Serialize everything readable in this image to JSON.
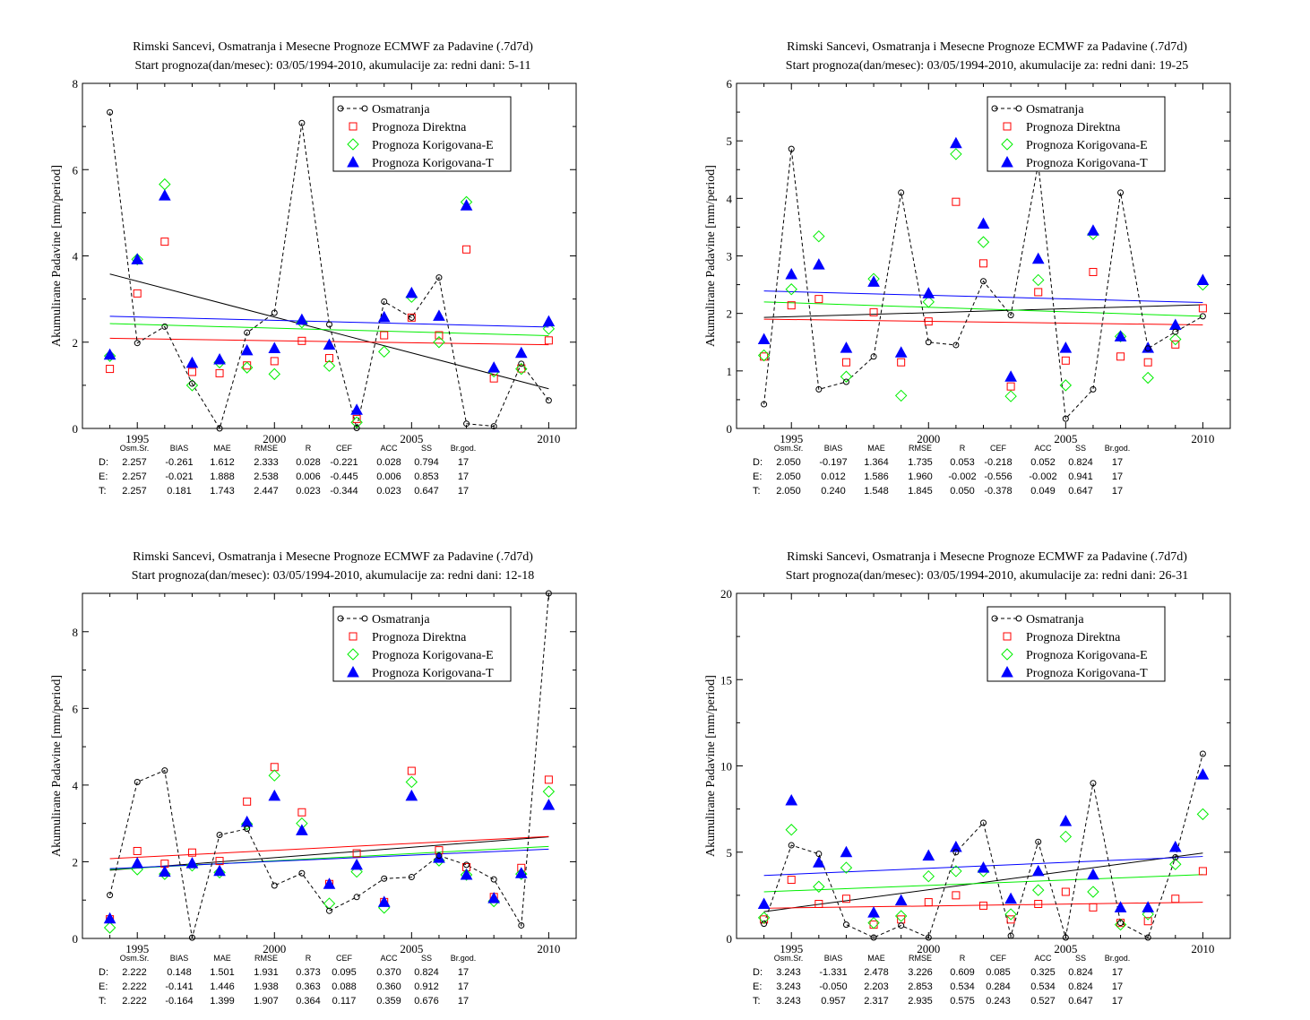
{
  "chart_data": [
    {
      "type": "scatter",
      "title": "Rimski Sancevi, Osmatranja i Mesecne Prognoze ECMWF za Padavine (.7d7d)",
      "subtitle": "Start prognoza(dan/mesec): 03/05/1994-2010, akumulacije za: redni dani: 5-11",
      "ylabel": "Akumulirane Padavine [mm/period]",
      "xlim": [
        1993,
        2011
      ],
      "ylim": [
        0,
        8
      ],
      "xticks": [
        1995,
        2000,
        2005,
        2010
      ],
      "yticks": [
        0,
        2,
        4,
        6,
        8
      ],
      "x": [
        1994,
        1995,
        1996,
        1997,
        1998,
        1999,
        2000,
        2001,
        2002,
        2003,
        2004,
        2005,
        2006,
        2007,
        2008,
        2009,
        2010
      ],
      "series": [
        {
          "name": "Osmatranja",
          "color": "#000000",
          "marker": "circle",
          "line": "dashed",
          "values": [
            7.33,
            1.98,
            2.36,
            1.04,
            0.0,
            2.22,
            2.68,
            7.08,
            2.41,
            0.01,
            2.94,
            2.57,
            3.5,
            0.11,
            0.05,
            1.5,
            0.65
          ],
          "trend": [
            3.58,
            0.92
          ]
        },
        {
          "name": "Prognoza Direktna",
          "color": "#ff0000",
          "marker": "square",
          "values": [
            1.38,
            3.13,
            4.33,
            1.31,
            1.28,
            1.46,
            1.56,
            2.03,
            1.63,
            0.22,
            2.16,
            2.57,
            2.16,
            4.15,
            1.16,
            1.39,
            2.04
          ],
          "trend": [
            2.09,
            1.94
          ]
        },
        {
          "name": "Prognoza Korigovana-E",
          "color": "#00ee00",
          "marker": "diamond",
          "values": [
            1.68,
            3.92,
            5.66,
            1.0,
            1.53,
            1.41,
            1.26,
            2.46,
            1.45,
            0.14,
            1.78,
            3.05,
            2.0,
            5.25,
            1.32,
            1.38,
            2.31
          ],
          "trend": [
            2.43,
            2.15
          ]
        },
        {
          "name": "Prognoza Korigovana-T",
          "color": "#0000ff",
          "marker": "triangle",
          "values": [
            1.71,
            3.92,
            5.4,
            1.52,
            1.6,
            1.81,
            1.86,
            2.52,
            1.94,
            0.43,
            2.58,
            3.14,
            2.61,
            5.17,
            1.41,
            1.75,
            2.48
          ],
          "trend": [
            2.6,
            2.35
          ]
        }
      ],
      "stats": {
        "headers": [
          "Osm.Sr.",
          "BIAS",
          "MAE",
          "RMSE",
          "R",
          "CEF",
          "ACC",
          "SS",
          "Br.god."
        ],
        "rows": [
          {
            "label": "D:",
            "color": "#ff0000",
            "values": [
              "2.257",
              "-0.261",
              "1.612",
              "2.333",
              "0.028",
              "-0.221",
              "0.028",
              "0.794",
              "17"
            ]
          },
          {
            "label": "E:",
            "color": "#00cc00",
            "values": [
              "2.257",
              "-0.021",
              "1.888",
              "2.538",
              "0.006",
              "-0.445",
              "0.006",
              "0.853",
              "17"
            ]
          },
          {
            "label": "T:",
            "color": "#0000ff",
            "values": [
              "2.257",
              "0.181",
              "1.743",
              "2.447",
              "0.023",
              "-0.344",
              "0.023",
              "0.647",
              "17"
            ]
          }
        ]
      }
    },
    {
      "type": "scatter",
      "title": "Rimski Sancevi, Osmatranja i Mesecne Prognoze ECMWF za Padavine (.7d7d)",
      "subtitle": "Start prognoza(dan/mesec): 03/05/1994-2010, akumulacije za: redni dani: 19-25",
      "ylabel": "Akumulirane Padavine [mm/period]",
      "xlim": [
        1993,
        2011
      ],
      "ylim": [
        0,
        6
      ],
      "xticks": [
        1995,
        2000,
        2005,
        2010
      ],
      "yticks": [
        0,
        1,
        2,
        3,
        4,
        5,
        6
      ],
      "x": [
        1994,
        1995,
        1996,
        1997,
        1998,
        1999,
        2000,
        2001,
        2002,
        2003,
        2004,
        2005,
        2006,
        2007,
        2008,
        2009,
        2010
      ],
      "series": [
        {
          "name": "Osmatranja",
          "color": "#000000",
          "marker": "circle",
          "line": "dashed",
          "values": [
            0.42,
            4.86,
            0.68,
            0.81,
            1.25,
            4.1,
            1.5,
            1.45,
            2.56,
            1.97,
            4.6,
            0.17,
            0.68,
            4.1,
            1.39,
            1.68,
            1.95
          ],
          "trend": [
            1.93,
            2.15
          ]
        },
        {
          "name": "Prognoza Direktna",
          "color": "#ff0000",
          "marker": "square",
          "values": [
            1.25,
            2.14,
            2.25,
            1.15,
            2.02,
            1.15,
            1.86,
            3.94,
            2.87,
            0.73,
            2.37,
            1.18,
            2.72,
            1.25,
            1.15,
            1.46,
            2.09
          ],
          "trend": [
            1.9,
            1.8
          ]
        },
        {
          "name": "Prognoza Korigovana-E",
          "color": "#00ee00",
          "marker": "diamond",
          "values": [
            1.27,
            2.42,
            3.34,
            0.9,
            2.6,
            0.57,
            2.2,
            4.77,
            3.24,
            0.56,
            2.58,
            0.75,
            3.38,
            1.6,
            0.88,
            1.55,
            2.5
          ],
          "trend": [
            2.2,
            1.95
          ]
        },
        {
          "name": "Prognoza Korigovana-T",
          "color": "#0000ff",
          "marker": "triangle",
          "values": [
            1.55,
            2.68,
            2.85,
            1.4,
            2.55,
            1.32,
            2.35,
            4.96,
            3.56,
            0.9,
            2.95,
            1.4,
            3.44,
            1.6,
            1.4,
            1.8,
            2.58
          ],
          "trend": [
            2.39,
            2.19
          ]
        }
      ],
      "stats": {
        "headers": [
          "Osm.Sr.",
          "BIAS",
          "MAE",
          "RMSE",
          "R",
          "CEF",
          "ACC",
          "SS",
          "Br.god."
        ],
        "rows": [
          {
            "label": "D:",
            "color": "#ff0000",
            "values": [
              "2.050",
              "-0.197",
              "1.364",
              "1.735",
              "0.053",
              "-0.218",
              "0.052",
              "0.824",
              "17"
            ]
          },
          {
            "label": "E:",
            "color": "#00cc00",
            "values": [
              "2.050",
              "0.012",
              "1.586",
              "1.960",
              "-0.002",
              "-0.556",
              "-0.002",
              "0.941",
              "17"
            ]
          },
          {
            "label": "T:",
            "color": "#0000ff",
            "values": [
              "2.050",
              "0.240",
              "1.548",
              "1.845",
              "0.050",
              "-0.378",
              "0.049",
              "0.647",
              "17"
            ]
          }
        ]
      }
    },
    {
      "type": "scatter",
      "title": "Rimski Sancevi, Osmatranja i Mesecne Prognoze ECMWF za Padavine (.7d7d)",
      "subtitle": "Start prognoza(dan/mesec): 03/05/1994-2010, akumulacije za: redni dani: 12-18",
      "ylabel": "Akumulirane Padavine [mm/period]",
      "xlim": [
        1993,
        2011
      ],
      "ylim": [
        0,
        9
      ],
      "xticks": [
        1995,
        2000,
        2005,
        2010
      ],
      "yticks": [
        0,
        2,
        4,
        6,
        8
      ],
      "x": [
        1994,
        1995,
        1996,
        1997,
        1998,
        1999,
        2000,
        2001,
        2002,
        2003,
        2004,
        2005,
        2006,
        2007,
        2008,
        2009,
        2010
      ],
      "series": [
        {
          "name": "Osmatranja",
          "color": "#000000",
          "marker": "circle",
          "line": "dashed",
          "values": [
            1.13,
            4.08,
            4.38,
            0.02,
            2.7,
            2.86,
            1.38,
            1.7,
            0.72,
            1.08,
            1.56,
            1.6,
            2.16,
            1.92,
            1.54,
            0.34,
            9.0
          ],
          "trend": [
            1.78,
            2.65
          ]
        },
        {
          "name": "Prognoza Direktna",
          "color": "#ff0000",
          "marker": "square",
          "values": [
            0.5,
            2.28,
            1.95,
            2.24,
            2.02,
            3.57,
            4.47,
            3.29,
            1.42,
            2.22,
            0.95,
            4.37,
            2.3,
            1.86,
            1.08,
            1.84,
            4.14
          ],
          "trend": [
            2.08,
            2.66
          ]
        },
        {
          "name": "Prognoza Korigovana-E",
          "color": "#00ee00",
          "marker": "diamond",
          "values": [
            0.28,
            1.8,
            1.68,
            1.9,
            1.72,
            2.98,
            4.25,
            3.0,
            0.91,
            1.74,
            0.8,
            4.08,
            2.03,
            1.66,
            0.97,
            1.68,
            3.83
          ],
          "trend": [
            1.8,
            2.4
          ]
        },
        {
          "name": "Prognoza Korigovana-T",
          "color": "#0000ff",
          "marker": "triangle",
          "values": [
            0.52,
            1.96,
            1.74,
            1.96,
            1.76,
            3.04,
            3.72,
            2.82,
            1.42,
            1.92,
            0.95,
            3.72,
            2.1,
            1.66,
            1.05,
            1.7,
            3.48
          ],
          "trend": [
            1.82,
            2.33
          ]
        }
      ],
      "stats": {
        "headers": [
          "Osm.Sr.",
          "BIAS",
          "MAE",
          "RMSE",
          "R",
          "CEF",
          "ACC",
          "SS",
          "Br.god."
        ],
        "rows": [
          {
            "label": "D:",
            "color": "#ff0000",
            "values": [
              "2.222",
              "0.148",
              "1.501",
              "1.931",
              "0.373",
              "0.095",
              "0.370",
              "0.824",
              "17"
            ]
          },
          {
            "label": "E:",
            "color": "#00cc00",
            "values": [
              "2.222",
              "-0.141",
              "1.446",
              "1.938",
              "0.363",
              "0.088",
              "0.360",
              "0.912",
              "17"
            ]
          },
          {
            "label": "T:",
            "color": "#0000ff",
            "values": [
              "2.222",
              "-0.164",
              "1.399",
              "1.907",
              "0.364",
              "0.117",
              "0.359",
              "0.676",
              "17"
            ]
          }
        ]
      }
    },
    {
      "type": "scatter",
      "title": "Rimski Sancevi, Osmatranja i Mesecne Prognoze ECMWF za Padavine (.7d7d)",
      "subtitle": "Start prognoza(dan/mesec): 03/05/1994-2010, akumulacije za: redni dani: 26-31",
      "ylabel": "Akumulirane Padavine [mm/period]",
      "xlim": [
        1993,
        2011
      ],
      "ylim": [
        0,
        20
      ],
      "xticks": [
        1995,
        2000,
        2005,
        2010
      ],
      "yticks": [
        0,
        5,
        10,
        15,
        20
      ],
      "x": [
        1994,
        1995,
        1996,
        1997,
        1998,
        1999,
        2000,
        2001,
        2002,
        2003,
        2004,
        2005,
        2006,
        2007,
        2008,
        2009,
        2010
      ],
      "series": [
        {
          "name": "Osmatranja",
          "color": "#000000",
          "marker": "circle",
          "line": "dashed",
          "values": [
            0.85,
            5.4,
            4.9,
            0.8,
            0.05,
            0.75,
            0.05,
            5.0,
            6.7,
            0.15,
            5.6,
            0.05,
            9.0,
            0.9,
            0.05,
            4.7,
            10.7
          ],
          "trend": [
            1.55,
            4.95
          ]
        },
        {
          "name": "Prognoza Direktna",
          "color": "#ff0000",
          "marker": "square",
          "values": [
            1.1,
            3.4,
            2.0,
            2.3,
            0.8,
            1.1,
            2.1,
            2.5,
            1.9,
            1.1,
            2.0,
            2.7,
            1.8,
            0.9,
            1.0,
            2.3,
            3.9
          ],
          "trend": [
            1.75,
            2.1
          ]
        },
        {
          "name": "Prognoza Korigovana-E",
          "color": "#00ee00",
          "marker": "diamond",
          "values": [
            1.2,
            6.3,
            3.0,
            4.1,
            0.9,
            1.3,
            3.6,
            3.9,
            3.9,
            1.4,
            2.8,
            5.9,
            2.7,
            0.8,
            1.4,
            4.3,
            7.2
          ],
          "trend": [
            2.7,
            3.7
          ]
        },
        {
          "name": "Prognoza Korigovana-T",
          "color": "#0000ff",
          "marker": "triangle",
          "values": [
            2.0,
            8.0,
            4.4,
            5.0,
            1.5,
            2.2,
            4.8,
            5.3,
            4.1,
            2.3,
            3.9,
            6.8,
            3.7,
            1.8,
            1.8,
            5.3,
            9.5
          ],
          "trend": [
            3.65,
            4.75
          ]
        }
      ],
      "stats": {
        "headers": [
          "Osm.Sr.",
          "BIAS",
          "MAE",
          "RMSE",
          "R",
          "CEF",
          "ACC",
          "SS",
          "Br.god."
        ],
        "rows": [
          {
            "label": "D:",
            "color": "#ff0000",
            "values": [
              "3.243",
              "-1.331",
              "2.478",
              "3.226",
              "0.609",
              "0.085",
              "0.325",
              "0.824",
              "17"
            ]
          },
          {
            "label": "E:",
            "color": "#00cc00",
            "values": [
              "3.243",
              "-0.050",
              "2.203",
              "2.853",
              "0.534",
              "0.284",
              "0.534",
              "0.824",
              "17"
            ]
          },
          {
            "label": "T:",
            "color": "#0000ff",
            "values": [
              "3.243",
              "0.957",
              "2.317",
              "2.935",
              "0.575",
              "0.243",
              "0.527",
              "0.647",
              "17"
            ]
          }
        ]
      }
    }
  ]
}
